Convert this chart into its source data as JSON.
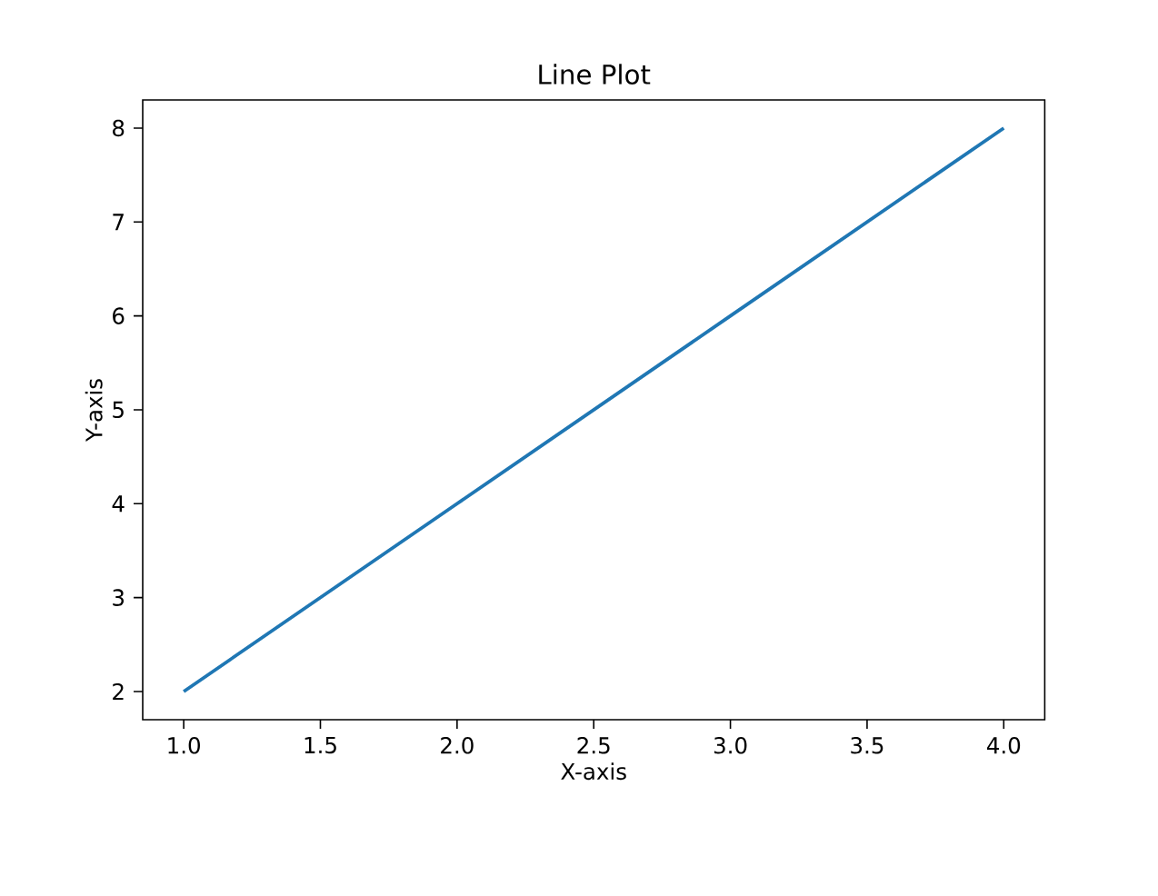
{
  "chart_data": {
    "type": "line",
    "title": "Line Plot",
    "xlabel": "X-axis",
    "ylabel": "Y-axis",
    "x": [
      1,
      2,
      3,
      4
    ],
    "values": [
      2,
      4,
      6,
      8
    ],
    "color": "#1f77b4",
    "xlim": [
      0.85,
      4.15
    ],
    "ylim": [
      1.7,
      8.3
    ],
    "xticks": [
      {
        "value": 1,
        "label": "1.0"
      },
      {
        "value": 1.5,
        "label": "1.5"
      },
      {
        "value": 2,
        "label": "2.0"
      },
      {
        "value": 2.5,
        "label": "2.5"
      },
      {
        "value": 3,
        "label": "3.0"
      },
      {
        "value": 3.5,
        "label": "3.5"
      },
      {
        "value": 4,
        "label": "4.0"
      }
    ],
    "yticks": [
      2,
      3,
      4,
      5,
      6,
      7,
      8
    ]
  }
}
